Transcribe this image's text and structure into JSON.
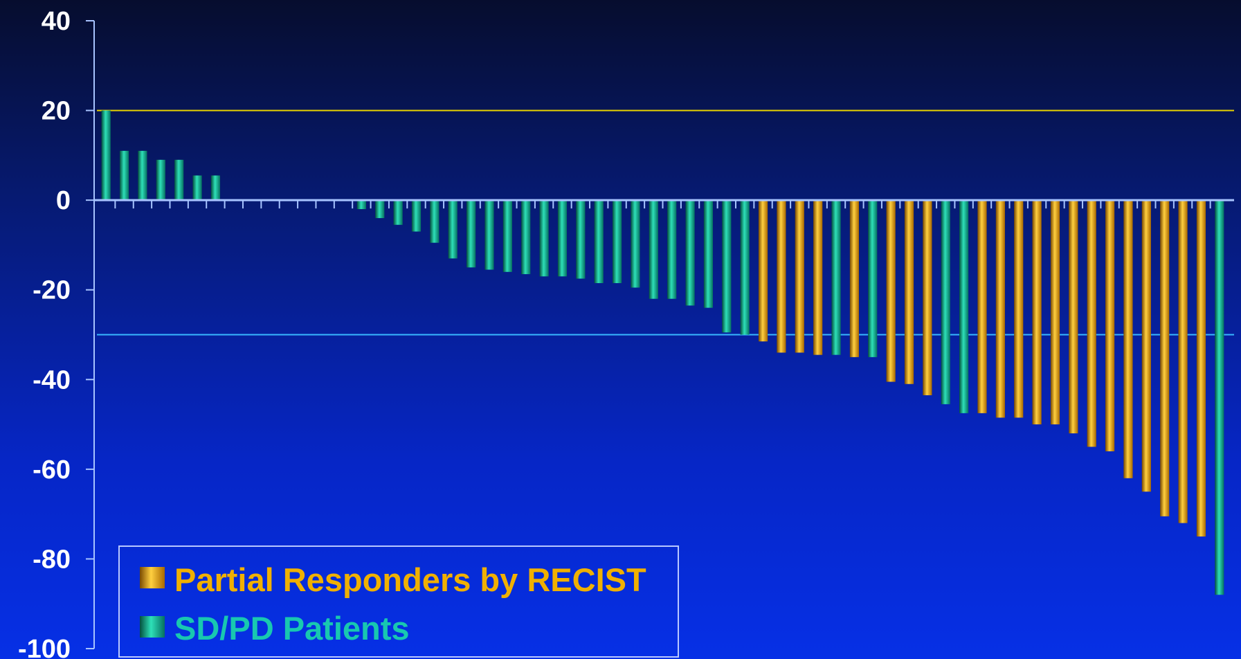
{
  "colors": {
    "pr": "#f0a800",
    "sdpd": "#10a88c",
    "threshold_upper": "#e6d200",
    "threshold_lower": "#38b8ff",
    "axis": "#a8c4ff",
    "tick_label": "#ffffff"
  },
  "legend": {
    "pr_label": "Partial Responders by RECIST",
    "sdpd_label": "SD/PD Patients",
    "placement": "bottom-left"
  },
  "chart_data": {
    "type": "bar",
    "title": "",
    "xlabel": "",
    "ylabel": "",
    "ylim": [
      -100,
      40
    ],
    "yticks": [
      40,
      20,
      0,
      -20,
      -40,
      -60,
      -80,
      -100
    ],
    "reference_lines": [
      20,
      -30
    ],
    "series": [
      {
        "name": "Partial Responders by RECIST",
        "key": "PR"
      },
      {
        "name": "SD/PD Patients",
        "key": "SDPD"
      }
    ],
    "bars": [
      {
        "v": 20,
        "g": "SDPD"
      },
      {
        "v": 11,
        "g": "SDPD"
      },
      {
        "v": 11,
        "g": "SDPD"
      },
      {
        "v": 9,
        "g": "SDPD"
      },
      {
        "v": 9,
        "g": "SDPD"
      },
      {
        "v": 5.5,
        "g": "SDPD"
      },
      {
        "v": 5.5,
        "g": "SDPD"
      },
      {
        "v": 0,
        "g": "SDPD"
      },
      {
        "v": 0,
        "g": "SDPD"
      },
      {
        "v": 0,
        "g": "SDPD"
      },
      {
        "v": 0,
        "g": "SDPD"
      },
      {
        "v": 0,
        "g": "SDPD"
      },
      {
        "v": 0,
        "g": "SDPD"
      },
      {
        "v": 0,
        "g": "SDPD"
      },
      {
        "v": -2,
        "g": "SDPD"
      },
      {
        "v": -4,
        "g": "SDPD"
      },
      {
        "v": -5.5,
        "g": "SDPD"
      },
      {
        "v": -7,
        "g": "SDPD"
      },
      {
        "v": -9.5,
        "g": "SDPD"
      },
      {
        "v": -13,
        "g": "SDPD"
      },
      {
        "v": -15,
        "g": "SDPD"
      },
      {
        "v": -15.5,
        "g": "SDPD"
      },
      {
        "v": -16,
        "g": "SDPD"
      },
      {
        "v": -16.5,
        "g": "SDPD"
      },
      {
        "v": -17,
        "g": "SDPD"
      },
      {
        "v": -17,
        "g": "SDPD"
      },
      {
        "v": -17.5,
        "g": "SDPD"
      },
      {
        "v": -18.5,
        "g": "SDPD"
      },
      {
        "v": -18.5,
        "g": "SDPD"
      },
      {
        "v": -19.5,
        "g": "SDPD"
      },
      {
        "v": -22,
        "g": "SDPD"
      },
      {
        "v": -22,
        "g": "SDPD"
      },
      {
        "v": -23.5,
        "g": "SDPD"
      },
      {
        "v": -24,
        "g": "SDPD"
      },
      {
        "v": -29.5,
        "g": "SDPD"
      },
      {
        "v": -30,
        "g": "SDPD"
      },
      {
        "v": -31.5,
        "g": "PR"
      },
      {
        "v": -34,
        "g": "PR"
      },
      {
        "v": -34,
        "g": "PR"
      },
      {
        "v": -34.5,
        "g": "PR"
      },
      {
        "v": -34.5,
        "g": "SDPD"
      },
      {
        "v": -35,
        "g": "PR"
      },
      {
        "v": -35,
        "g": "SDPD"
      },
      {
        "v": -40.5,
        "g": "PR"
      },
      {
        "v": -41,
        "g": "PR"
      },
      {
        "v": -43.5,
        "g": "PR"
      },
      {
        "v": -45.5,
        "g": "SDPD"
      },
      {
        "v": -47.5,
        "g": "SDPD"
      },
      {
        "v": -47.5,
        "g": "PR"
      },
      {
        "v": -48.5,
        "g": "PR"
      },
      {
        "v": -48.5,
        "g": "PR"
      },
      {
        "v": -50,
        "g": "PR"
      },
      {
        "v": -50,
        "g": "PR"
      },
      {
        "v": -52,
        "g": "PR"
      },
      {
        "v": -55,
        "g": "PR"
      },
      {
        "v": -56,
        "g": "PR"
      },
      {
        "v": -62,
        "g": "PR"
      },
      {
        "v": -65,
        "g": "PR"
      },
      {
        "v": -70.5,
        "g": "PR"
      },
      {
        "v": -72,
        "g": "PR"
      },
      {
        "v": -75,
        "g": "PR"
      },
      {
        "v": -88,
        "g": "SDPD"
      }
    ]
  }
}
